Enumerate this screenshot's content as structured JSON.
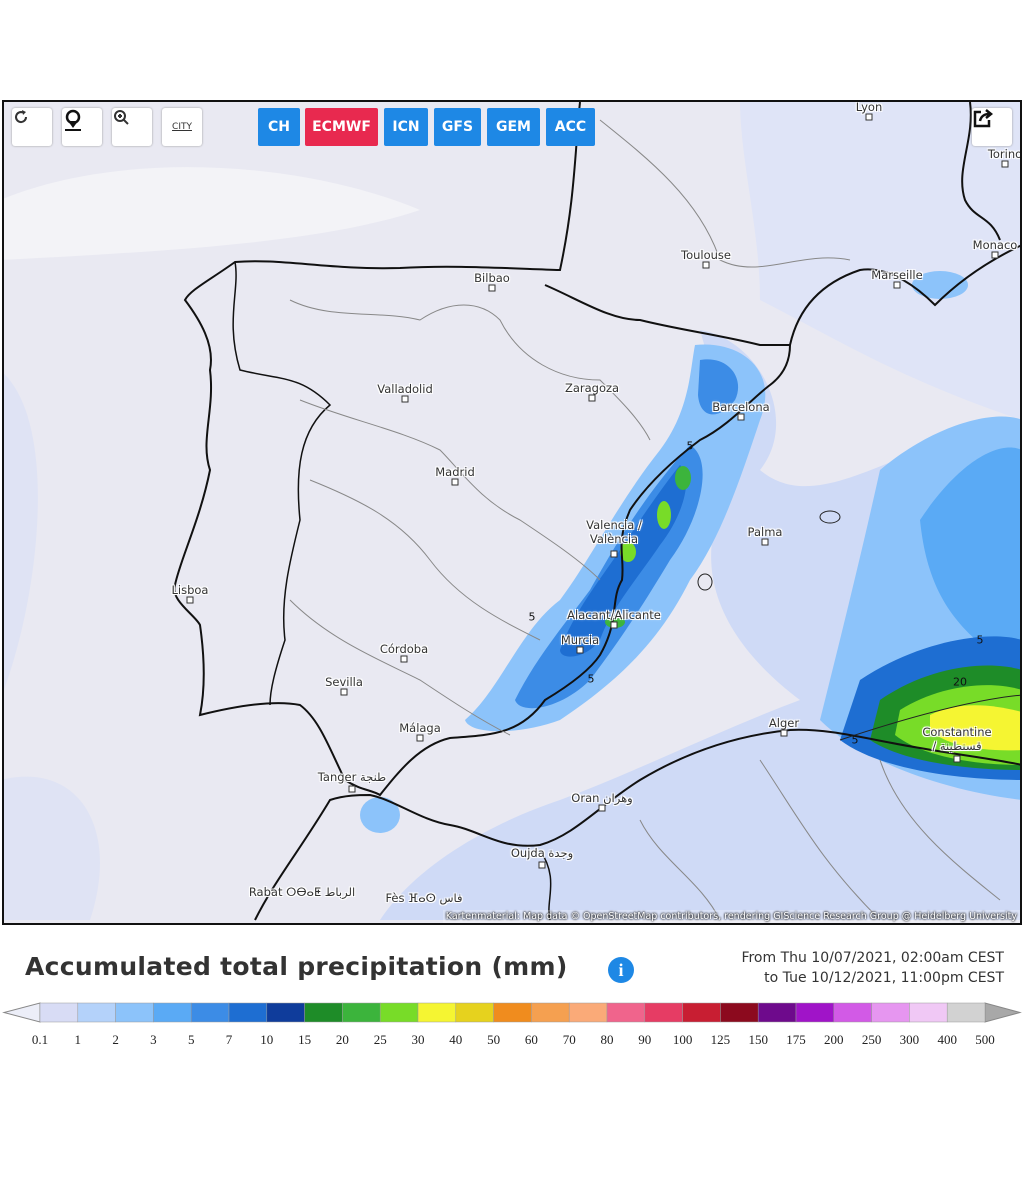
{
  "toolbar": {
    "city_toggle": "CITY",
    "models": [
      "CH",
      "ECMWF",
      "ICN",
      "GFS",
      "GEM",
      "ACC"
    ]
  },
  "map": {
    "cities": [
      "Lyon",
      "Torino",
      "Monaco",
      "Marseille",
      "Toulouse",
      "Bilbao",
      "Zaragoza",
      "Barcelona",
      "Valladolid",
      "Madrid",
      "Valencia / València",
      "Palma",
      "Lisboa",
      "Alacant/Alicante",
      "Murcia",
      "Córdoba",
      "Sevilla",
      "Málaga",
      "Alger",
      "Constantine / قسنطينة",
      "Tanger طنجة",
      "Oran وهران",
      "Oujda وجدة",
      "Rabat ⵔⴱⴰⵟ الرباط",
      "Fès ⴼⴰⵙ فاس"
    ],
    "contour_labels": [
      "5",
      "5",
      "5",
      "5",
      "20",
      "5"
    ],
    "attribution": "Kartenmaterial: Map data © OpenStreetMap contributors, rendering GIScience Research Group @ Heidelberg University"
  },
  "legend": {
    "title": "Accumulated total precipitation (mm)",
    "info": "i",
    "period_start": "From Thu 10/07/2021, 02:00am CEST",
    "period_end": "to Tue 10/12/2021, 11:00pm CEST",
    "labels": [
      "0.1",
      "1",
      "2",
      "3",
      "5",
      "7",
      "10",
      "15",
      "20",
      "25",
      "30",
      "40",
      "50",
      "60",
      "70",
      "80",
      "90",
      "100",
      "125",
      "150",
      "175",
      "200",
      "250",
      "300",
      "400",
      "500"
    ],
    "colors": [
      "#d8dcf5",
      "#b4d2fa",
      "#8cc3fa",
      "#5aaaf5",
      "#3c8ce6",
      "#1e6ed2",
      "#0f3c9b",
      "#1e8c28",
      "#3cb43c",
      "#78dc28",
      "#f5f532",
      "#e6d21e",
      "#f08c1e",
      "#f5a050",
      "#faaa78",
      "#f0648c",
      "#e63c64",
      "#c81e32",
      "#8c0a1e",
      "#6e0a8c",
      "#a014c8",
      "#d25ae6",
      "#e696f0",
      "#f0c8f5",
      "#d2d2d2"
    ],
    "under_color": "#eceef8",
    "over_color": "#a8a8a8"
  }
}
